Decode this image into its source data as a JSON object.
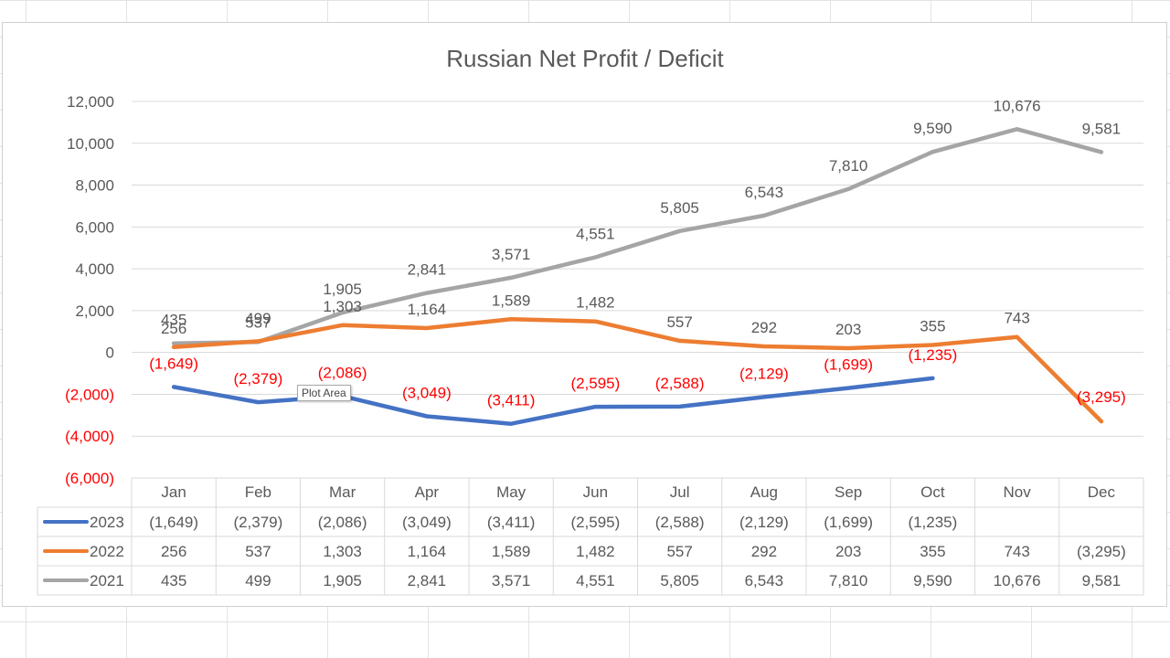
{
  "chart_data": {
    "type": "line",
    "title": "Russian Net Profit / Deficit",
    "xlabel": "",
    "ylabel": "",
    "categories": [
      "Jan",
      "Feb",
      "Mar",
      "Apr",
      "May",
      "Jun",
      "Jul",
      "Aug",
      "Sep",
      "Oct",
      "Nov",
      "Dec"
    ],
    "ylim": [
      -6000,
      12000
    ],
    "y_ticks": [
      {
        "value": 12000,
        "label": "12,000"
      },
      {
        "value": 10000,
        "label": "10,000"
      },
      {
        "value": 8000,
        "label": "8,000"
      },
      {
        "value": 6000,
        "label": "6,000"
      },
      {
        "value": 4000,
        "label": "4,000"
      },
      {
        "value": 2000,
        "label": "2,000"
      },
      {
        "value": 0,
        "label": "0"
      },
      {
        "value": -2000,
        "label": "(2,000)"
      },
      {
        "value": -4000,
        "label": "(4,000)"
      },
      {
        "value": -6000,
        "label": "(6,000)"
      }
    ],
    "negative_color": "#ff0000",
    "grid": true,
    "legend": "data-table",
    "series": [
      {
        "name": "2023",
        "color": "#4472c4",
        "values": [
          -1649,
          -2379,
          -2086,
          -3049,
          -3411,
          -2595,
          -2588,
          -2129,
          -1699,
          -1235,
          null,
          null
        ],
        "labels": [
          "(1,649)",
          "(2,379)",
          "(2,086)",
          "(3,049)",
          "(3,411)",
          "(2,595)",
          "(2,588)",
          "(2,129)",
          "(1,699)",
          "(1,235)",
          "",
          ""
        ]
      },
      {
        "name": "2022",
        "color": "#ed7d31",
        "values": [
          256,
          537,
          1303,
          1164,
          1589,
          1482,
          557,
          292,
          203,
          355,
          743,
          -3295
        ],
        "labels": [
          "256",
          "537",
          "1,303",
          "1,164",
          "1,589",
          "1,482",
          "557",
          "292",
          "203",
          "355",
          "743",
          "(3,295)"
        ]
      },
      {
        "name": "2021",
        "color": "#a5a5a5",
        "values": [
          435,
          499,
          1905,
          2841,
          3571,
          4551,
          5805,
          6543,
          7810,
          9590,
          10676,
          9581
        ],
        "labels": [
          "435",
          "499",
          "1,905",
          "2,841",
          "3,571",
          "4,551",
          "5,805",
          "6,543",
          "7,810",
          "9,590",
          "10,676",
          "9,581"
        ]
      }
    ]
  },
  "tooltip": "Plot Area"
}
